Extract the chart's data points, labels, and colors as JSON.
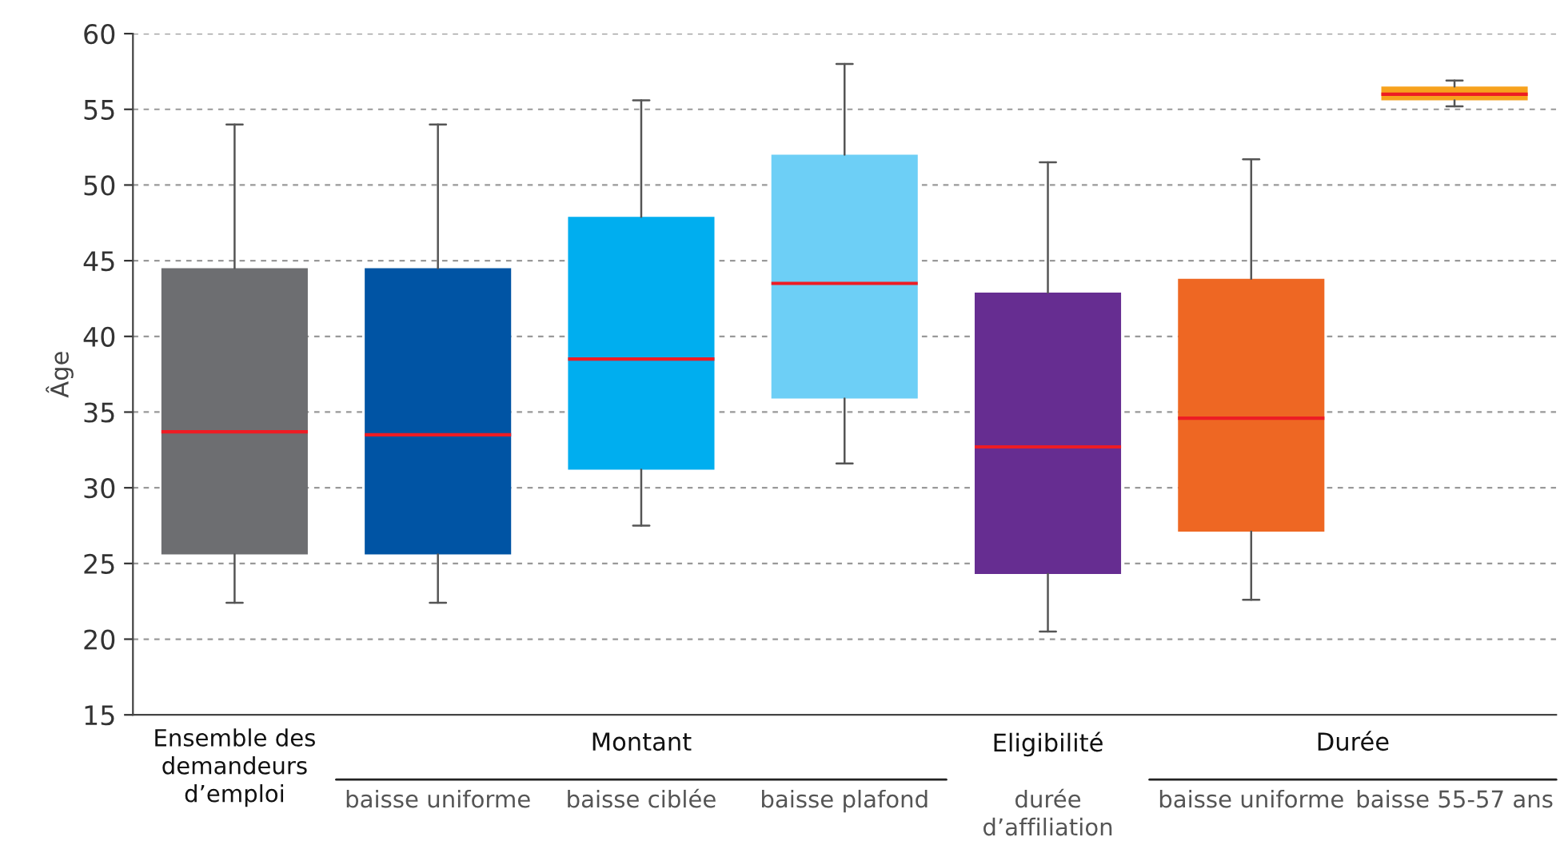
{
  "chart_data": {
    "type": "box",
    "ylabel": "Âge",
    "categories": [
      "Ensemble des\ndemandeurs\nd’emploi",
      "baisse uniforme",
      "baisse ciblée",
      "baisse plafond",
      "durée\nd’affiliation",
      "baisse uniforme",
      "baisse 55-57 ans"
    ],
    "colors": [
      "#6d6e71",
      "#0054a4",
      "#00aeef",
      "#6dcff6",
      "#662d91",
      "#ee6723",
      "#f7a21d"
    ],
    "boxes": [
      {
        "low": 22.4,
        "q1": 25.6,
        "median": 33.7,
        "q3": 44.5,
        "high": 54
      },
      {
        "low": 22.4,
        "q1": 25.6,
        "median": 33.5,
        "q3": 44.5,
        "high": 54
      },
      {
        "low": 27.5,
        "q1": 31.2,
        "median": 38.5,
        "q3": 47.9,
        "high": 55.6
      },
      {
        "low": 31.6,
        "q1": 35.9,
        "median": 43.5,
        "q3": 52,
        "high": 58
      },
      {
        "low": 20.5,
        "q1": 24.3,
        "median": 32.7,
        "q3": 42.9,
        "high": 51.5
      },
      {
        "low": 22.6,
        "q1": 27.1,
        "median": 34.6,
        "q3": 43.8,
        "high": 51.7
      },
      {
        "low": 55.2,
        "q1": 55.6,
        "median": 56,
        "q3": 56.5,
        "high": 56.9
      }
    ],
    "ylim": [
      15,
      60
    ],
    "yticks": [
      15,
      20,
      25,
      30,
      35,
      40,
      45,
      50,
      55,
      60
    ],
    "grid": "y",
    "annotations": [
      "Montant",
      "Eligibilité",
      "Durée"
    ]
  }
}
